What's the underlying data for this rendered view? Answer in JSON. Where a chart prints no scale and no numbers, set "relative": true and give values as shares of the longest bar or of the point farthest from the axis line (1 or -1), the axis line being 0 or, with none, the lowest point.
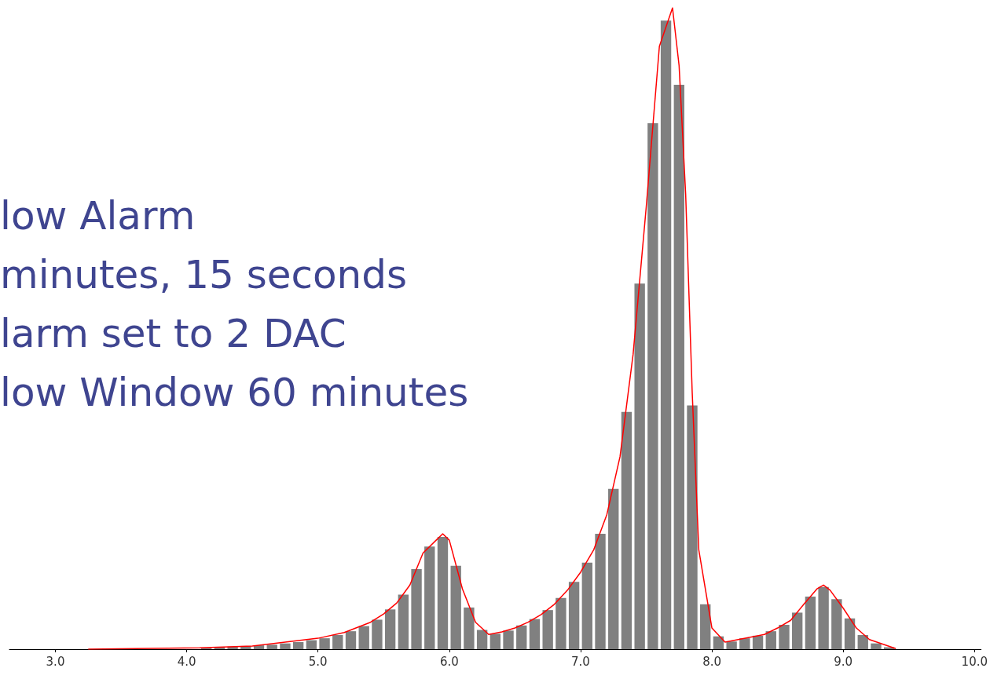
{
  "chart_data": {
    "type": "histogram",
    "relative": true,
    "tick_labels": "x",
    "xlim": [
      2.65,
      10.05
    ],
    "xticks": [
      {
        "value": 3,
        "label": "3.0"
      },
      {
        "value": 4,
        "label": "4.0"
      },
      {
        "value": 5,
        "label": "5.0"
      },
      {
        "value": 6,
        "label": "6.0"
      },
      {
        "value": 7,
        "label": "7.0"
      },
      {
        "value": 8,
        "label": "8.0"
      },
      {
        "value": 9,
        "label": "9.0"
      },
      {
        "value": 10,
        "label": "10.0"
      }
    ],
    "annotations": [
      "low Alarm",
      "minutes, 15 seconds",
      "larm set to 2 DAC",
      "low Window 60 minutes"
    ],
    "series": [
      {
        "color": "#808080",
        "bins": [
          4.1,
          4.2,
          4.3,
          4.4,
          4.5,
          4.6,
          4.7,
          4.8,
          4.9,
          5.0,
          5.1,
          5.2,
          5.3,
          5.4,
          5.5,
          5.6,
          5.7,
          5.8,
          5.9,
          6.0,
          6.1,
          6.2,
          6.3,
          6.4,
          6.5,
          6.6,
          6.7,
          6.8,
          6.9,
          7.0,
          7.1,
          7.2,
          7.3,
          7.4,
          7.5,
          7.6,
          7.7,
          7.8,
          7.9,
          8.0,
          8.1,
          8.2,
          8.3,
          8.4,
          8.5,
          8.6,
          8.7,
          8.8,
          8.9,
          9.0,
          9.1,
          9.2,
          9.3,
          9.4
        ],
        "values": [
          0.002,
          0.003,
          0.004,
          0.005,
          0.006,
          0.007,
          0.009,
          0.011,
          0.014,
          0.017,
          0.022,
          0.028,
          0.036,
          0.046,
          0.062,
          0.085,
          0.125,
          0.16,
          0.175,
          0.13,
          0.065,
          0.03,
          0.024,
          0.029,
          0.037,
          0.047,
          0.061,
          0.08,
          0.105,
          0.135,
          0.18,
          0.25,
          0.37,
          0.57,
          0.82,
          0.98,
          0.88,
          0.38,
          0.07,
          0.02,
          0.012,
          0.017,
          0.021,
          0.028,
          0.038,
          0.057,
          0.082,
          0.097,
          0.078,
          0.048,
          0.022,
          0.009,
          0.003
        ]
      },
      {
        "type": "line",
        "color": "#ff0000",
        "x": [
          3.25,
          4.1,
          4.5,
          5.0,
          5.2,
          5.4,
          5.5,
          5.6,
          5.7,
          5.8,
          5.9,
          5.95,
          6.0,
          6.1,
          6.2,
          6.3,
          6.4,
          6.5,
          6.6,
          6.7,
          6.8,
          6.9,
          7.0,
          7.1,
          7.2,
          7.3,
          7.4,
          7.5,
          7.6,
          7.7,
          7.75,
          7.8,
          7.85,
          7.9,
          8.0,
          8.1,
          8.2,
          8.4,
          8.5,
          8.6,
          8.7,
          8.8,
          8.85,
          8.9,
          9.0,
          9.1,
          9.2,
          9.4
        ],
        "values": [
          0,
          0.002,
          0.005,
          0.017,
          0.026,
          0.042,
          0.055,
          0.072,
          0.1,
          0.15,
          0.17,
          0.18,
          0.17,
          0.094,
          0.042,
          0.023,
          0.027,
          0.033,
          0.042,
          0.054,
          0.07,
          0.092,
          0.12,
          0.155,
          0.21,
          0.3,
          0.46,
          0.69,
          0.94,
          1.0,
          0.91,
          0.71,
          0.4,
          0.155,
          0.033,
          0.011,
          0.015,
          0.023,
          0.033,
          0.045,
          0.07,
          0.094,
          0.1,
          0.092,
          0.064,
          0.033,
          0.015,
          0.001
        ]
      }
    ]
  }
}
